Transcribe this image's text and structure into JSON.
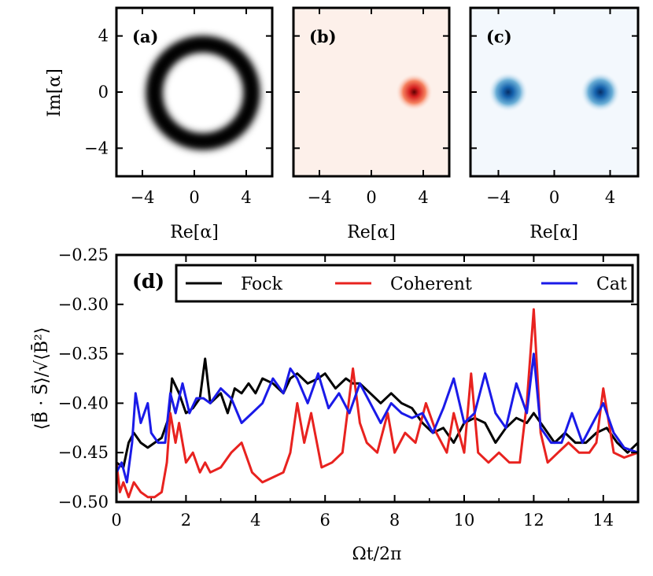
{
  "chart_data": [
    {
      "panel": "(a)",
      "type": "heatmap",
      "state": "fock",
      "colormap": "#000000",
      "ring_radius": 3.2,
      "ring_width": 0.45,
      "xlabel": "Re[α]",
      "ylabel": "Im[α]",
      "xlim": [
        -6,
        6
      ],
      "ylim": [
        -6,
        6
      ],
      "xticks": [
        -4,
        0,
        4
      ],
      "yticks": [
        -4,
        0,
        4
      ],
      "xtick_labels": [
        "−4",
        "0",
        "4"
      ],
      "ytick_labels": [
        "−4",
        "0",
        "4"
      ]
    },
    {
      "panel": "(b)",
      "type": "heatmap",
      "state": "coherent",
      "colormap": "#cc0000",
      "background": "#fdf0ea",
      "centers": [
        [
          3.3,
          0
        ]
      ],
      "sigma": 0.55,
      "xlabel": "Re[α]",
      "xlim": [
        -6,
        6
      ],
      "ylim": [
        -6,
        6
      ],
      "xticks": [
        -4,
        0,
        4
      ],
      "xtick_labels": [
        "−4",
        "0",
        "4"
      ]
    },
    {
      "panel": "(c)",
      "type": "heatmap",
      "state": "cat",
      "colormap": "#08509c",
      "background": "#f3f8fd",
      "centers": [
        [
          -3.3,
          0
        ],
        [
          3.3,
          0
        ]
      ],
      "sigma": 0.55,
      "xlabel": "Re[α]",
      "xlim": [
        -6,
        6
      ],
      "ylim": [
        -6,
        6
      ],
      "xticks": [
        -4,
        0,
        4
      ],
      "xtick_labels": [
        "−4",
        "0",
        "4"
      ]
    },
    {
      "panel": "(d)",
      "type": "line",
      "xlabel": "Ωt/2π",
      "ylabel": "⟨B⃗ · S⃗⟩/√⟨B̄²⟩",
      "xlim": [
        0,
        15
      ],
      "ylim": [
        -0.5,
        -0.25
      ],
      "xticks": [
        0,
        2,
        4,
        6,
        8,
        10,
        12,
        14
      ],
      "xtick_labels": [
        "0",
        "2",
        "4",
        "6",
        "8",
        "10",
        "12",
        "14"
      ],
      "yticks": [
        -0.5,
        -0.45,
        -0.4,
        -0.35,
        -0.3,
        -0.25
      ],
      "ytick_labels": [
        "−0.50",
        "−0.45",
        "−0.40",
        "−0.35",
        "−0.30",
        "−0.25"
      ],
      "legend": "top",
      "series": [
        {
          "name": "Fock",
          "color": "#000000",
          "x": [
            0,
            0.2,
            0.35,
            0.5,
            0.7,
            0.9,
            1.1,
            1.3,
            1.5,
            1.6,
            1.8,
            2.0,
            2.2,
            2.4,
            2.55,
            2.7,
            3.0,
            3.2,
            3.4,
            3.6,
            3.8,
            4.0,
            4.2,
            4.5,
            4.8,
            5.0,
            5.2,
            5.5,
            5.8,
            6.0,
            6.3,
            6.6,
            6.8,
            7.0,
            7.3,
            7.6,
            7.9,
            8.2,
            8.5,
            8.8,
            9.1,
            9.4,
            9.7,
            10.0,
            10.3,
            10.6,
            10.9,
            11.2,
            11.5,
            11.8,
            12.0,
            12.3,
            12.6,
            12.9,
            13.2,
            13.5,
            13.8,
            14.1,
            14.4,
            14.7,
            15.0
          ],
          "y": [
            -0.46,
            -0.465,
            -0.44,
            -0.43,
            -0.44,
            -0.445,
            -0.44,
            -0.435,
            -0.415,
            -0.375,
            -0.39,
            -0.41,
            -0.405,
            -0.395,
            -0.355,
            -0.4,
            -0.39,
            -0.41,
            -0.385,
            -0.39,
            -0.38,
            -0.39,
            -0.375,
            -0.38,
            -0.39,
            -0.375,
            -0.37,
            -0.38,
            -0.375,
            -0.37,
            -0.385,
            -0.375,
            -0.38,
            -0.38,
            -0.39,
            -0.4,
            -0.39,
            -0.4,
            -0.405,
            -0.42,
            -0.43,
            -0.425,
            -0.44,
            -0.42,
            -0.415,
            -0.42,
            -0.44,
            -0.425,
            -0.415,
            -0.42,
            -0.41,
            -0.425,
            -0.44,
            -0.43,
            -0.44,
            -0.44,
            -0.43,
            -0.425,
            -0.44,
            -0.45,
            -0.44
          ]
        },
        {
          "name": "Coherent",
          "color": "#e8221f",
          "x": [
            0,
            0.1,
            0.2,
            0.35,
            0.5,
            0.7,
            0.9,
            1.1,
            1.3,
            1.45,
            1.55,
            1.7,
            1.8,
            2.0,
            2.2,
            2.4,
            2.55,
            2.7,
            3.0,
            3.3,
            3.6,
            3.9,
            4.2,
            4.5,
            4.8,
            5.0,
            5.2,
            5.4,
            5.6,
            5.9,
            6.2,
            6.5,
            6.8,
            7.0,
            7.2,
            7.5,
            7.8,
            8.0,
            8.3,
            8.6,
            8.9,
            9.2,
            9.5,
            9.7,
            10.0,
            10.2,
            10.4,
            10.7,
            11.0,
            11.3,
            11.6,
            11.8,
            12.0,
            12.2,
            12.4,
            12.7,
            13.0,
            13.3,
            13.6,
            13.8,
            14.0,
            14.3,
            14.6,
            15.0
          ],
          "y": [
            -0.46,
            -0.49,
            -0.48,
            -0.495,
            -0.48,
            -0.49,
            -0.495,
            -0.495,
            -0.49,
            -0.46,
            -0.41,
            -0.44,
            -0.42,
            -0.46,
            -0.45,
            -0.47,
            -0.46,
            -0.47,
            -0.465,
            -0.45,
            -0.44,
            -0.47,
            -0.48,
            -0.475,
            -0.47,
            -0.45,
            -0.4,
            -0.44,
            -0.41,
            -0.465,
            -0.46,
            -0.45,
            -0.365,
            -0.42,
            -0.44,
            -0.45,
            -0.41,
            -0.45,
            -0.43,
            -0.44,
            -0.4,
            -0.43,
            -0.45,
            -0.41,
            -0.45,
            -0.37,
            -0.45,
            -0.46,
            -0.45,
            -0.46,
            -0.46,
            -0.4,
            -0.305,
            -0.43,
            -0.46,
            -0.45,
            -0.44,
            -0.45,
            -0.45,
            -0.44,
            -0.385,
            -0.45,
            -0.455,
            -0.45
          ]
        },
        {
          "name": "Cat",
          "color": "#1a1ae8",
          "x": [
            0,
            0.15,
            0.3,
            0.45,
            0.55,
            0.7,
            0.9,
            1.0,
            1.2,
            1.4,
            1.55,
            1.7,
            1.9,
            2.1,
            2.3,
            2.5,
            2.7,
            3.0,
            3.3,
            3.6,
            3.9,
            4.2,
            4.5,
            4.8,
            5.0,
            5.2,
            5.5,
            5.8,
            6.1,
            6.4,
            6.7,
            7.0,
            7.3,
            7.6,
            7.9,
            8.2,
            8.5,
            8.8,
            9.1,
            9.4,
            9.7,
            10.0,
            10.3,
            10.6,
            10.9,
            11.2,
            11.5,
            11.8,
            12.0,
            12.2,
            12.5,
            12.8,
            13.1,
            13.4,
            13.7,
            14.0,
            14.3,
            14.6,
            15.0
          ],
          "y": [
            -0.47,
            -0.46,
            -0.48,
            -0.44,
            -0.39,
            -0.42,
            -0.4,
            -0.43,
            -0.44,
            -0.44,
            -0.39,
            -0.41,
            -0.38,
            -0.41,
            -0.395,
            -0.395,
            -0.4,
            -0.385,
            -0.395,
            -0.42,
            -0.41,
            -0.4,
            -0.375,
            -0.39,
            -0.365,
            -0.375,
            -0.4,
            -0.37,
            -0.405,
            -0.39,
            -0.41,
            -0.38,
            -0.4,
            -0.42,
            -0.4,
            -0.41,
            -0.415,
            -0.41,
            -0.43,
            -0.405,
            -0.375,
            -0.42,
            -0.41,
            -0.37,
            -0.41,
            -0.425,
            -0.38,
            -0.41,
            -0.35,
            -0.425,
            -0.44,
            -0.44,
            -0.41,
            -0.44,
            -0.42,
            -0.4,
            -0.43,
            -0.445,
            -0.45
          ]
        }
      ]
    }
  ]
}
